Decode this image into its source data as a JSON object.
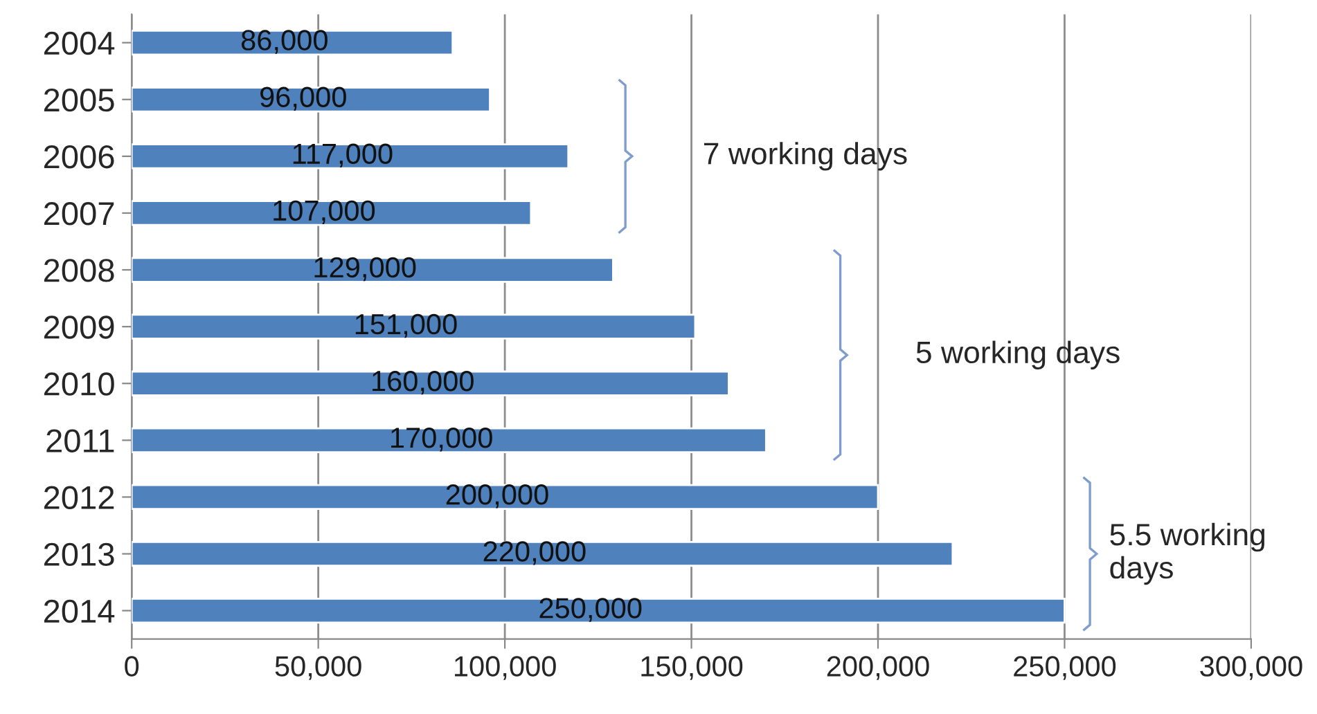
{
  "chart_data": {
    "type": "bar",
    "orientation": "horizontal",
    "categories": [
      "2004",
      "2005",
      "2006",
      "2007",
      "2008",
      "2009",
      "2010",
      "2011",
      "2012",
      "2013",
      "2014"
    ],
    "values": [
      86000,
      96000,
      117000,
      107000,
      129000,
      151000,
      160000,
      170000,
      200000,
      220000,
      250000
    ],
    "color": "#4f81bd",
    "value_labels": [
      "86,000",
      "96,000",
      "117,000",
      "107,000",
      "129,000",
      "151,000",
      "160,000",
      "170,000",
      "200,000",
      "220,000",
      "250,000"
    ],
    "xlim": [
      0,
      300000
    ],
    "xticks": [
      {
        "value": 0,
        "label": "0"
      },
      {
        "value": 50000,
        "label": "50,000"
      },
      {
        "value": 100000,
        "label": "100,000"
      },
      {
        "value": 150000,
        "label": "150,000"
      },
      {
        "value": 200000,
        "label": "200,000"
      },
      {
        "value": 250000,
        "label": "250,000"
      },
      {
        "value": 300000,
        "label": "300,000"
      }
    ],
    "grid": "x",
    "annotations": [
      "7 working days",
      "5 working days",
      "5.5 working\ndays"
    ]
  }
}
